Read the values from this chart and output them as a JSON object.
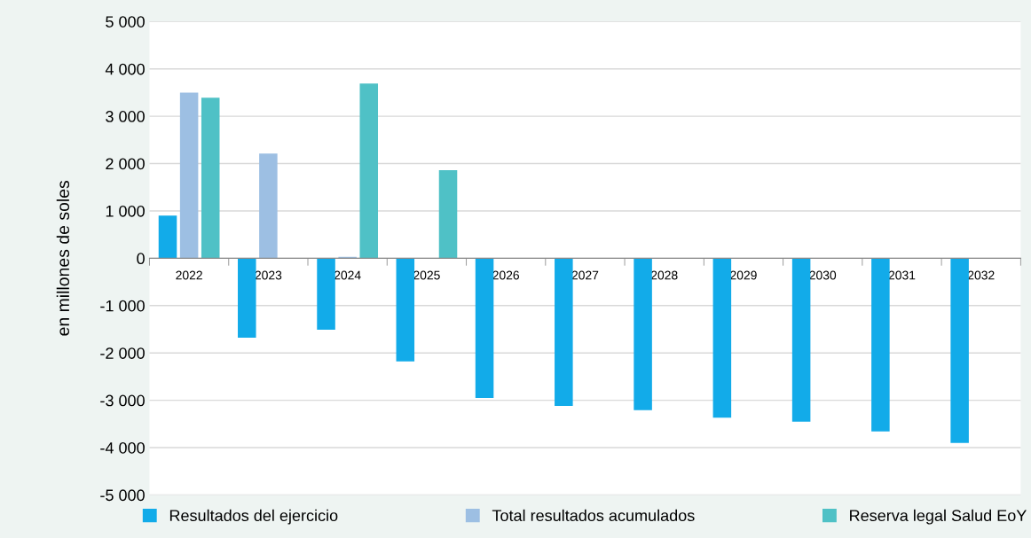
{
  "chart_data": {
    "type": "bar",
    "ylabel": "en millones de soles",
    "categories": [
      "2022",
      "2023",
      "2024",
      "2025",
      "2026",
      "2027",
      "2028",
      "2029",
      "2030",
      "2031",
      "2032"
    ],
    "series": [
      {
        "name": "Resultados del ejercicio",
        "color": "#12abe9",
        "values": [
          900,
          -1680,
          -1510,
          -2180,
          -2950,
          -3120,
          -3210,
          -3370,
          -3450,
          -3660,
          -3900
        ]
      },
      {
        "name": "Total resultados acumulados",
        "color": "#9dbfe3",
        "values": [
          3500,
          2210,
          30,
          null,
          null,
          null,
          null,
          null,
          null,
          null,
          null
        ]
      },
      {
        "name": "Reserva legal Salud EoY",
        "color": "#4fc1c6",
        "values": [
          3390,
          null,
          3690,
          1860,
          null,
          null,
          null,
          null,
          null,
          null,
          null
        ]
      }
    ],
    "ylim": [
      -5000,
      5000
    ],
    "yticks": [
      {
        "value": -5000,
        "label": "-5 000"
      },
      {
        "value": -4000,
        "label": "-4 000"
      },
      {
        "value": -3000,
        "label": "-3 000"
      },
      {
        "value": -2000,
        "label": "-2 000"
      },
      {
        "value": -1000,
        "label": "-1 000"
      },
      0,
      {
        "value": 1000,
        "label": "1 000"
      },
      {
        "value": 2000,
        "label": "2 000"
      },
      {
        "value": 3000,
        "label": "3 000"
      },
      {
        "value": 4000,
        "label": "4 000"
      },
      {
        "value": 5000,
        "label": "5 000"
      }
    ],
    "grid": "y",
    "legend": "bottom"
  }
}
